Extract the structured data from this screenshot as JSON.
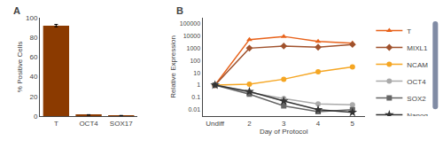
{
  "chart_data": [
    {
      "type": "bar",
      "categories": [
        "T",
        "OCT4",
        "SOX17"
      ],
      "values": [
        92,
        1.2,
        0.5
      ],
      "error": [
        1.2,
        0.25,
        0.15
      ],
      "color": "#8B3A00",
      "ylabel": "% Positive Cells",
      "ylim": [
        0,
        100
      ],
      "yticks": [
        0,
        20,
        40,
        60,
        80,
        100
      ],
      "grid": false,
      "annotations": [
        "A"
      ]
    },
    {
      "type": "line",
      "categories": [
        "Undiff",
        "2",
        "3",
        "4",
        "5"
      ],
      "xlabel": "Day of Protocol",
      "ylabel": "Relative Expression",
      "log": "y",
      "ylim": [
        0.003,
        300000
      ],
      "yticks": [
        0.01,
        0.1,
        1,
        10,
        100,
        1000,
        10000,
        100000
      ],
      "grid": false,
      "legend": "right",
      "annotations": [
        "B"
      ],
      "series": [
        {
          "name": "T",
          "color": "#E8621A",
          "marker": "triangle",
          "values": [
            1.0,
            5000,
            9000,
            3500,
            2500
          ]
        },
        {
          "name": "MIXL1",
          "color": "#A0522D",
          "marker": "diamond",
          "values": [
            1.0,
            1000,
            1500,
            1200,
            2000
          ]
        },
        {
          "name": "NCAM",
          "color": "#F5A623",
          "marker": "circle",
          "values": [
            1.0,
            1.2,
            3.0,
            12,
            30
          ]
        },
        {
          "name": "OCT4",
          "color": "#AAAAAA",
          "marker": "circle",
          "values": [
            1.0,
            0.25,
            0.08,
            0.03,
            0.025
          ]
        },
        {
          "name": "SOX2",
          "color": "#666666",
          "marker": "square",
          "values": [
            1.0,
            0.18,
            0.02,
            0.007,
            0.01
          ]
        },
        {
          "name": "Nanog",
          "color": "#333333",
          "marker": "star",
          "values": [
            1.0,
            0.3,
            0.05,
            0.01,
            0.006
          ]
        }
      ]
    }
  ]
}
